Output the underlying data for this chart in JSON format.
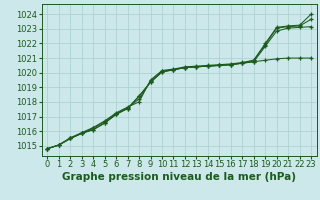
{
  "x": [
    0,
    1,
    2,
    3,
    4,
    5,
    6,
    7,
    8,
    9,
    10,
    11,
    12,
    13,
    14,
    15,
    16,
    17,
    18,
    19,
    20,
    21,
    22,
    23
  ],
  "lines": [
    [
      1014.8,
      1015.05,
      1015.5,
      1015.85,
      1016.1,
      1016.55,
      1017.15,
      1017.55,
      1018.4,
      1019.35,
      1020.05,
      1020.2,
      1020.35,
      1020.4,
      1020.45,
      1020.5,
      1020.55,
      1020.65,
      1020.75,
      1020.85,
      1020.95,
      1021.0,
      1021.0,
      1021.0
    ],
    [
      1014.8,
      1015.05,
      1015.5,
      1015.85,
      1016.1,
      1016.55,
      1017.15,
      1017.55,
      1018.4,
      1019.35,
      1020.05,
      1020.2,
      1020.35,
      1020.4,
      1020.45,
      1020.5,
      1020.55,
      1020.65,
      1020.75,
      1021.8,
      1022.85,
      1023.05,
      1023.1,
      1023.15
    ],
    [
      1014.8,
      1015.05,
      1015.5,
      1015.85,
      1016.2,
      1016.65,
      1017.2,
      1017.6,
      1018.2,
      1019.4,
      1020.1,
      1020.2,
      1020.35,
      1020.4,
      1020.45,
      1020.5,
      1020.55,
      1020.65,
      1020.85,
      1021.9,
      1023.05,
      1023.15,
      1023.2,
      1023.65
    ],
    [
      1014.8,
      1015.05,
      1015.55,
      1015.9,
      1016.25,
      1016.7,
      1017.25,
      1017.65,
      1018.0,
      1019.5,
      1020.15,
      1020.25,
      1020.4,
      1020.45,
      1020.5,
      1020.55,
      1020.6,
      1020.7,
      1020.85,
      1022.0,
      1023.1,
      1023.2,
      1023.25,
      1024.0
    ]
  ],
  "line_color": "#1a5c1a",
  "marker_color": "#1a5c1a",
  "bg_color": "#cce8ea",
  "grid_color": "#aacdd0",
  "axis_color": "#1a5c1a",
  "title": "Graphe pression niveau de la mer (hPa)",
  "xlim": [
    -0.5,
    23.5
  ],
  "ylim": [
    1014.3,
    1024.7
  ],
  "yticks": [
    1015,
    1016,
    1017,
    1018,
    1019,
    1020,
    1021,
    1022,
    1023,
    1024
  ],
  "xticks": [
    0,
    1,
    2,
    3,
    4,
    5,
    6,
    7,
    8,
    9,
    10,
    11,
    12,
    13,
    14,
    15,
    16,
    17,
    18,
    19,
    20,
    21,
    22,
    23
  ],
  "title_fontsize": 7.5,
  "tick_fontsize": 6.0
}
